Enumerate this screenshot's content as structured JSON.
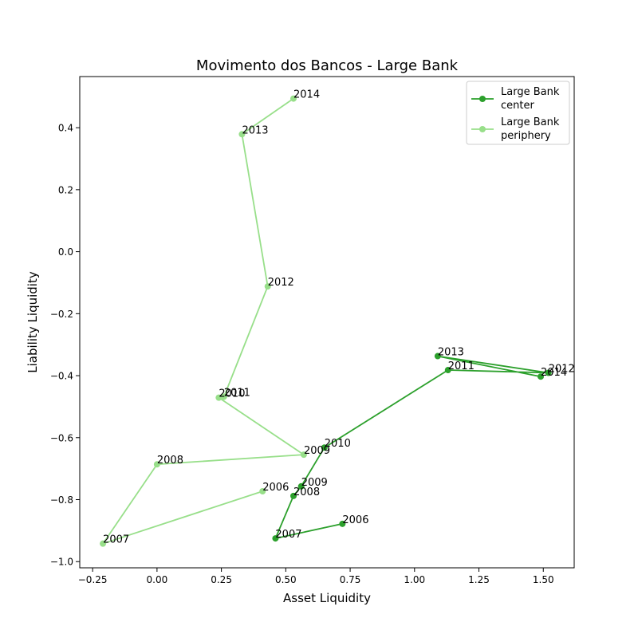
{
  "chart_data": {
    "type": "line",
    "title": "Movimento dos Bancos - Large Bank",
    "xlabel": "Asset Liquidity",
    "ylabel": "Liability Liquidity",
    "xlim": [
      -0.3,
      1.62
    ],
    "ylim": [
      -1.02,
      0.565
    ],
    "xticks": [
      -0.25,
      0.0,
      0.25,
      0.5,
      0.75,
      1.0,
      1.25,
      1.5
    ],
    "xtick_labels": [
      "−0.25",
      "0.00",
      "0.25",
      "0.50",
      "0.75",
      "1.00",
      "1.25",
      "1.50"
    ],
    "yticks": [
      -1.0,
      -0.8,
      -0.6,
      -0.4,
      -0.2,
      0.0,
      0.2,
      0.4
    ],
    "ytick_labels": [
      "−1.0",
      "−0.8",
      "−0.6",
      "−0.4",
      "−0.2",
      "0.0",
      "0.2",
      "0.4"
    ],
    "grid": false,
    "legend_position": "top-right",
    "series": [
      {
        "name": "Large Bank center",
        "legend_lines": [
          "Large Bank",
          "center"
        ],
        "color": "#2ca02c",
        "points": [
          {
            "label": "2006",
            "x": 0.72,
            "y": -0.878
          },
          {
            "label": "2007",
            "x": 0.46,
            "y": -0.925
          },
          {
            "label": "2008",
            "x": 0.53,
            "y": -0.788
          },
          {
            "label": "2009",
            "x": 0.56,
            "y": -0.757
          },
          {
            "label": "2010",
            "x": 0.65,
            "y": -0.632
          },
          {
            "label": "2011",
            "x": 1.13,
            "y": -0.382
          },
          {
            "label": "2012",
            "x": 1.52,
            "y": -0.391
          },
          {
            "label": "2013",
            "x": 1.09,
            "y": -0.337
          },
          {
            "label": "2014",
            "x": 1.49,
            "y": -0.403
          }
        ]
      },
      {
        "name": "Large Bank periphery",
        "legend_lines": [
          "Large Bank",
          "periphery"
        ],
        "color": "#98df8a",
        "points": [
          {
            "label": "2006",
            "x": 0.41,
            "y": -0.773
          },
          {
            "label": "2007",
            "x": -0.21,
            "y": -0.942
          },
          {
            "label": "2008",
            "x": 0.0,
            "y": -0.686
          },
          {
            "label": "2009",
            "x": 0.57,
            "y": -0.655
          },
          {
            "label": "2010",
            "x": 0.24,
            "y": -0.471
          },
          {
            "label": "2011",
            "x": 0.26,
            "y": -0.468
          },
          {
            "label": "2012",
            "x": 0.43,
            "y": -0.112
          },
          {
            "label": "2013",
            "x": 0.33,
            "y": 0.379
          },
          {
            "label": "2014",
            "x": 0.53,
            "y": 0.494
          }
        ]
      }
    ]
  }
}
